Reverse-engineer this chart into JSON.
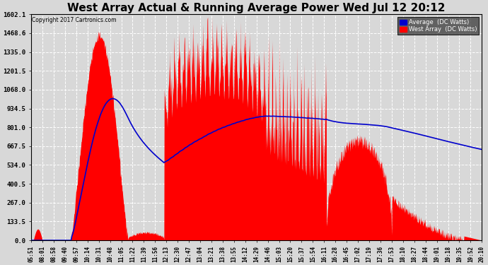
{
  "title": "West Array Actual & Running Average Power Wed Jul 12 20:12",
  "copyright": "Copyright 2017 Cartronics.com",
  "legend_avg": "Average  (DC Watts)",
  "legend_west": "West Array  (DC Watts)",
  "ymax": 1602.1,
  "ymin": 0.0,
  "yticks": [
    0.0,
    133.5,
    267.0,
    400.5,
    534.0,
    667.5,
    801.0,
    934.5,
    1068.0,
    1201.5,
    1335.0,
    1468.6,
    1602.1
  ],
  "background_color": "#d8d8d8",
  "plot_bg_color": "#d8d8d8",
  "grid_color": "#ffffff",
  "red_color": "#ff0000",
  "blue_color": "#0000cc",
  "title_fontsize": 11,
  "x_labels": [
    "05:51",
    "08:01",
    "08:58",
    "09:40",
    "09:57",
    "10:14",
    "10:31",
    "10:48",
    "11:05",
    "11:22",
    "11:39",
    "11:56",
    "12:13",
    "12:30",
    "12:47",
    "13:04",
    "13:21",
    "13:38",
    "13:55",
    "14:12",
    "14:29",
    "14:46",
    "15:03",
    "15:20",
    "15:37",
    "15:54",
    "16:11",
    "16:28",
    "16:45",
    "17:02",
    "17:19",
    "17:36",
    "17:53",
    "18:10",
    "18:27",
    "18:44",
    "19:01",
    "19:18",
    "19:35",
    "19:52",
    "20:10"
  ]
}
